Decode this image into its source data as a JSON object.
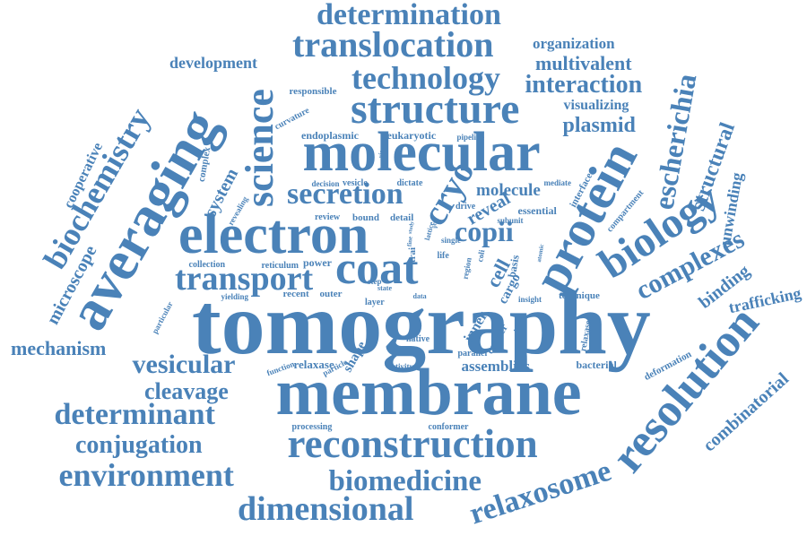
{
  "color": "#4a82b8",
  "words": [
    "tomography",
    "membrane",
    "electron",
    "molecular",
    "coat",
    "averaging",
    "structure",
    "protein",
    "reconstruction",
    "resolution",
    "translocation",
    "biology",
    "science",
    "determination",
    "technology",
    "dimensional",
    "environment",
    "biomedicine",
    "transport",
    "secretion",
    "determinant",
    "biochemistry",
    "escherichia",
    "relaxosome",
    "complexes",
    "conjugation",
    "vesicular",
    "cleavage",
    "interaction",
    "cryo",
    "copii",
    "mechanism",
    "plasmid",
    "multivalent",
    "development",
    "structural",
    "combinatorial",
    "binding",
    "trafficking",
    "organization",
    "molecule",
    "microscope",
    "visualizing",
    "cooperative",
    "unwinding",
    "reveal",
    "cell",
    "assemblies",
    "endoplasmic",
    "eukaryotic",
    "responsible",
    "system",
    "complex",
    "revealing",
    "decision",
    "vesicle",
    "dictate",
    "drive",
    "essential",
    "mediate",
    "interface",
    "compartment",
    "review",
    "bound",
    "detail",
    "collection",
    "reticulum",
    "power",
    "recent",
    "outer",
    "layer",
    "yielding",
    "particular",
    "relaxase",
    "native",
    "shape",
    "function",
    "particle",
    "activity",
    "parallel",
    "bacterial",
    "deformation",
    "processing",
    "conformer",
    "technique",
    "insight",
    "cargo",
    "inner",
    "carrier",
    "basis",
    "region",
    "coli",
    "trai",
    "step",
    "life",
    "single",
    "subunit",
    "atomic",
    "typical",
    "data",
    "fine",
    "lattice",
    "curvature",
    "pipeline",
    "study",
    "relaxases",
    "pros",
    "view",
    "state"
  ]
}
